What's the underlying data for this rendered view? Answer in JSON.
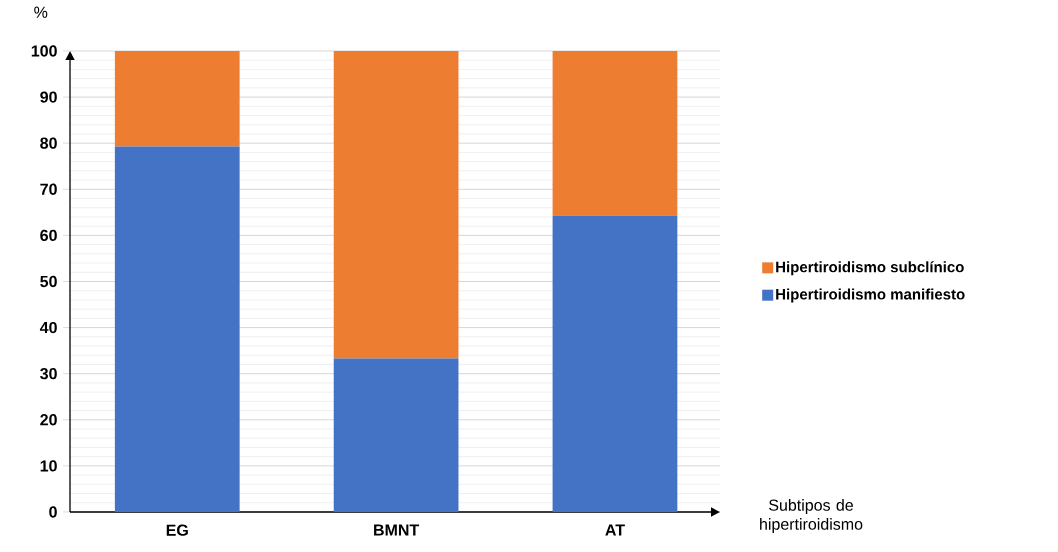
{
  "chart_data": {
    "type": "bar",
    "stacked": true,
    "categories": [
      "EG",
      "BMNT",
      "AT"
    ],
    "series": [
      {
        "name": "Hipertiroidismo manifiesto",
        "color": "#4472c4",
        "values": [
          79.3,
          33.3,
          64.3
        ]
      },
      {
        "name": "Hipertiroidismo subclínico",
        "color": "#ed7d31",
        "values": [
          20.7,
          66.7,
          35.7
        ]
      }
    ],
    "ylabel": "%",
    "xlabel": "Subtipos de hipertiroidismo",
    "ylim": [
      0,
      100
    ],
    "yticks": [
      0,
      10,
      20,
      30,
      40,
      50,
      60,
      70,
      80,
      90,
      100
    ],
    "grid": "y",
    "legend": "right"
  }
}
